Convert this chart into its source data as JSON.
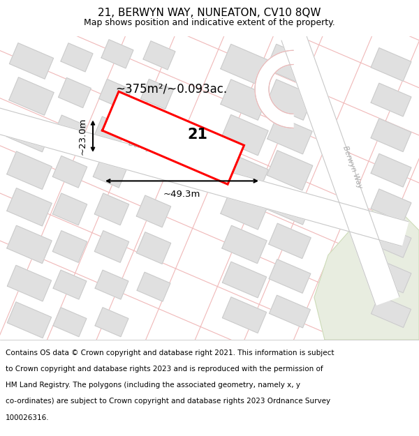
{
  "title": "21, BERWYN WAY, NUNEATON, CV10 8QW",
  "subtitle": "Map shows position and indicative extent of the property.",
  "area_text": "~375m²/~0.093ac.",
  "dim_width": "~49.3m",
  "dim_height": "~23.0m",
  "plot_number": "21",
  "map_bg": "#ffffff",
  "road_line_color": "#f0b8b8",
  "road_line_lw": 0.8,
  "building_fill": "#e0e0e0",
  "building_edge": "#c8c8c8",
  "plot_outline_color": "#ff0000",
  "street_label_color": "#aaaaaa",
  "street_label": "Berwyn Way",
  "green_area_color": "#e8ede0",
  "title_fontsize": 11,
  "subtitle_fontsize": 9,
  "footer_fontsize": 7.5,
  "bg_color": "#ffffff",
  "footer_lines": [
    "Contains OS data © Crown copyright and database right 2021. This information is subject",
    "to Crown copyright and database rights 2023 and is reproduced with the permission of",
    "HM Land Registry. The polygons (including the associated geometry, namely x, y",
    "co-ordinates) are subject to Crown copyright and database rights 2023 Ordnance Survey",
    "100026316."
  ]
}
